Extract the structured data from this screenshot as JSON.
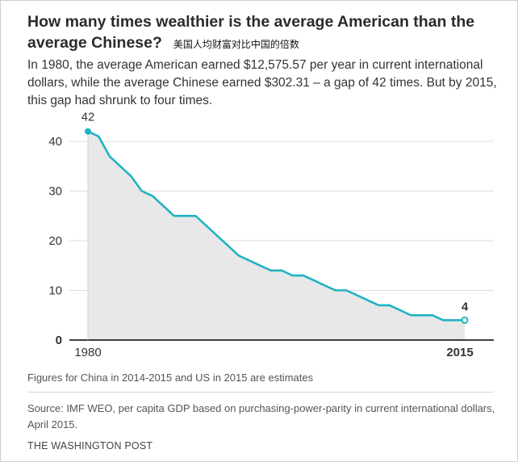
{
  "header": {
    "title": "How many times wealthier is the average American than the average Chinese?",
    "subtitle_cn": "美国人均财富对比中国的倍数",
    "dek": "In 1980, the average American earned $12,575.57 per year in current international dollars, while the average Chinese earned $302.31 – a gap of 42 times. But by 2015, this gap had shrunk to four times."
  },
  "chart_data": {
    "type": "area",
    "x": [
      1980,
      1981,
      1982,
      1983,
      1984,
      1985,
      1986,
      1987,
      1988,
      1989,
      1990,
      1991,
      1992,
      1993,
      1994,
      1995,
      1996,
      1997,
      1998,
      1999,
      2000,
      2001,
      2002,
      2003,
      2004,
      2005,
      2006,
      2007,
      2008,
      2009,
      2010,
      2011,
      2012,
      2013,
      2014,
      2015
    ],
    "series": [
      {
        "values": [
          42,
          41,
          37,
          35,
          33,
          30,
          29,
          27,
          25,
          25,
          25,
          23,
          21,
          19,
          17,
          16,
          15,
          14,
          14,
          13,
          13,
          12,
          11,
          10,
          10,
          9,
          8,
          7,
          7,
          6,
          5,
          5,
          5,
          4,
          4,
          4
        ]
      }
    ],
    "ylim": [
      0,
      43
    ],
    "y_ticks": [
      "0",
      "10",
      "20",
      "30",
      "40"
    ],
    "x_ticks": [
      "1980",
      "2015"
    ],
    "annotations": {
      "start_label": "42",
      "end_label": "4"
    },
    "colors": {
      "line": "#1fb3c1",
      "area": "#e8e8e8",
      "axis": "#000000",
      "grid": "#dcdcdc"
    },
    "grid": true
  },
  "footer": {
    "note": "Figures for China in 2014-2015 and US in 2015 are estimates",
    "source": "Source: IMF WEO, per capita GDP based on purchasing-power-parity in current international dollars, April 2015.",
    "credit": "THE WASHINGTON POST"
  }
}
